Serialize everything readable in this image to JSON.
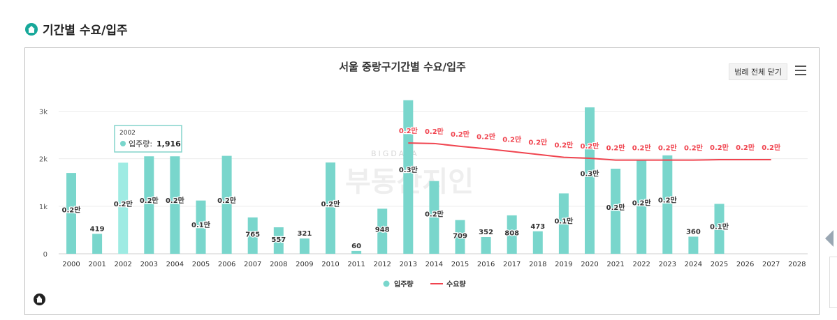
{
  "section": {
    "title": "기간별 수요/입주",
    "icon": "home-icon"
  },
  "toolbar": {
    "legend_close_label": "범례 전체 닫기",
    "menu_icon": "hamburger-menu-icon"
  },
  "watermark": {
    "small": "BIGDATA",
    "big": "부동산지인"
  },
  "chart_data": {
    "type": "bar",
    "title": "서울 중랑구기간별 수요/입주",
    "xlabel": "",
    "ylabel": "",
    "ylim": [
      0,
      3300
    ],
    "ytick_values": [
      0,
      1000,
      2000,
      3000
    ],
    "ytick_labels": [
      "0",
      "1k",
      "2k",
      "3k"
    ],
    "grid": true,
    "legend_position": "bottom-center",
    "categories": [
      "2000",
      "2001",
      "2002",
      "2003",
      "2004",
      "2005",
      "2006",
      "2007",
      "2008",
      "2009",
      "2010",
      "2011",
      "2012",
      "2013",
      "2014",
      "2015",
      "2016",
      "2017",
      "2018",
      "2019",
      "2020",
      "2021",
      "2022",
      "2023",
      "2024",
      "2025",
      "2026",
      "2027",
      "2028"
    ],
    "series": [
      {
        "name": "입주량",
        "type": "bar",
        "color": "#79d6cc",
        "highlight_color": "#9eebe3",
        "values": [
          1700,
          419,
          1916,
          2050,
          2050,
          1120,
          2060,
          765,
          557,
          321,
          1920,
          60,
          948,
          3230,
          1530,
          709,
          352,
          808,
          473,
          1270,
          3080,
          1790,
          1960,
          2070,
          360,
          1050,
          null,
          null,
          null
        ],
        "labels": [
          "0.2만",
          "419",
          "0.2만",
          "0.2만",
          "0.2만",
          "0.1만",
          "0.2만",
          "765",
          "557",
          "321",
          "0.2만",
          "60",
          "948",
          "0.3만",
          "0.2만",
          "709",
          "352",
          "808",
          "473",
          "0.1만",
          "0.3만",
          "0.2만",
          "0.2만",
          "0.2만",
          "360",
          "0.1만",
          "",
          "",
          ""
        ]
      },
      {
        "name": "수요량",
        "type": "line",
        "color": "#f0444f",
        "values": [
          null,
          null,
          null,
          null,
          null,
          null,
          null,
          null,
          null,
          null,
          null,
          null,
          null,
          2330,
          2320,
          2260,
          2210,
          2150,
          2090,
          2030,
          2010,
          1970,
          1970,
          1970,
          1970,
          1980,
          1980,
          1980,
          null
        ],
        "labels": [
          "",
          "",
          "",
          "",
          "",
          "",
          "",
          "",
          "",
          "",
          "",
          "",
          "",
          "0.2만",
          "0.2만",
          "0.2만",
          "0.2만",
          "0.2만",
          "0.2만",
          "0.2만",
          "0.2만",
          "0.2만",
          "0.2만",
          "0.2만",
          "0.2만",
          "0.2만",
          "0.2만",
          "0.2만",
          ""
        ]
      }
    ],
    "tooltip": {
      "category": "2002",
      "series": "입주량",
      "value": "1,916"
    }
  }
}
